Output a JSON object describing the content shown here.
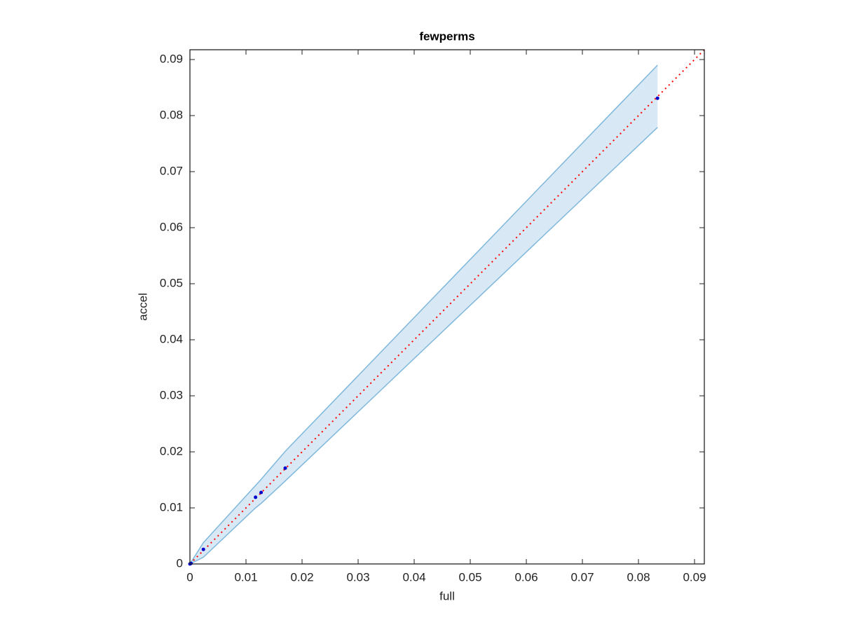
{
  "chart_data": {
    "type": "scatter",
    "title": "fewperms",
    "x_label": "full",
    "y_label": "accel",
    "xlim": [
      0,
      0.09175
    ],
    "ylim": [
      0,
      0.09175
    ],
    "xticks": [
      0,
      0.01,
      0.02,
      0.03,
      0.04,
      0.05,
      0.06,
      0.07,
      0.08,
      0.09
    ],
    "yticks": [
      0,
      0.01,
      0.02,
      0.03,
      0.04,
      0.05,
      0.06,
      0.07,
      0.08,
      0.09
    ],
    "band": {
      "color": "#7fb8dc",
      "fill": "#d8e8f4",
      "x": [
        0,
        0.0024,
        0.0117,
        0.0127,
        0.017,
        0.0834
      ],
      "upper": [
        0,
        0.0038,
        0.014,
        0.0151,
        0.0201,
        0.089
      ],
      "lower": [
        0,
        0.0012,
        0.01,
        0.0108,
        0.0148,
        0.0779
      ]
    },
    "points": {
      "color": "#0000cc",
      "x": [
        0,
        0.0002,
        0.0024,
        0.0117,
        0.0127,
        0.017,
        0.0834
      ],
      "values": [
        0,
        0.0001,
        0.0026,
        0.0119,
        0.01275,
        0.0171,
        0.0831
      ]
    },
    "reference_line": {
      "color": "#ff0000",
      "x": [
        0,
        0.09175
      ],
      "values": [
        0,
        0.09175
      ]
    }
  }
}
